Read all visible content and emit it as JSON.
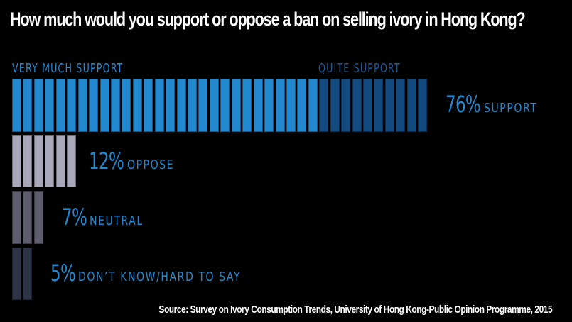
{
  "title": "How much would you support or oppose a ban on selling ivory in Hong Kong?",
  "colors": {
    "background": "#000000",
    "very_much_support": "#2288d0",
    "quite_support": "#134b80",
    "oppose": "#a9a8bb",
    "neutral": "#5e5d6e",
    "dont_know": "#2d3448",
    "label_blue": "#2288d0",
    "quite_label": "#1b5a96"
  },
  "labels": {
    "very_much_support": "VERY MUCH SUPPORT",
    "quite_support": "QUITE SUPPORT"
  },
  "rows": [
    {
      "pct": "76%",
      "desc": "SUPPORT"
    },
    {
      "pct": "12%",
      "desc": "OPPOSE"
    },
    {
      "pct": "7%",
      "desc": "NEUTRAL"
    },
    {
      "pct": "5%",
      "desc": "DON’T KNOW/HARD TO SAY"
    }
  ],
  "source": "Source: Survey on Ivory Consumption Trends, University of Hong Kong-Public Opinion Programme, 2015",
  "chart_data": {
    "type": "bar",
    "title": "How much would you support or oppose a ban on selling ivory in Hong Kong?",
    "orientation": "horizontal",
    "unit_note": "Each segment represents 2%",
    "categories": [
      "Support",
      "Oppose",
      "Neutral",
      "Don't know/hard to say"
    ],
    "values": [
      76,
      12,
      7,
      5
    ],
    "series": [
      {
        "name": "Very much support",
        "values": [
          56,
          0,
          0,
          0
        ],
        "segments": [
          28,
          0,
          0,
          0
        ]
      },
      {
        "name": "Quite support",
        "values": [
          20,
          0,
          0,
          0
        ],
        "segments": [
          10,
          0,
          0,
          0
        ]
      },
      {
        "name": "Oppose",
        "values": [
          0,
          12,
          0,
          0
        ],
        "segments": [
          0,
          6,
          0,
          0
        ]
      },
      {
        "name": "Neutral",
        "values": [
          0,
          0,
          7,
          0
        ],
        "segments": [
          0,
          0,
          3,
          0
        ]
      },
      {
        "name": "Don't know/hard to say",
        "values": [
          0,
          0,
          0,
          5
        ],
        "segments": [
          0,
          0,
          0,
          2
        ]
      }
    ],
    "data_labels": [
      "76% SUPPORT",
      "12% OPPOSE",
      "7% NEUTRAL",
      "5% DON'T KNOW/HARD TO SAY"
    ],
    "legend": [
      "VERY MUCH SUPPORT",
      "QUITE SUPPORT"
    ],
    "xlabel": "",
    "ylabel": "",
    "grid": false,
    "source": "Source: Survey on Ivory Consumption Trends, University of Hong Kong-Public Opinion Programme, 2015"
  }
}
